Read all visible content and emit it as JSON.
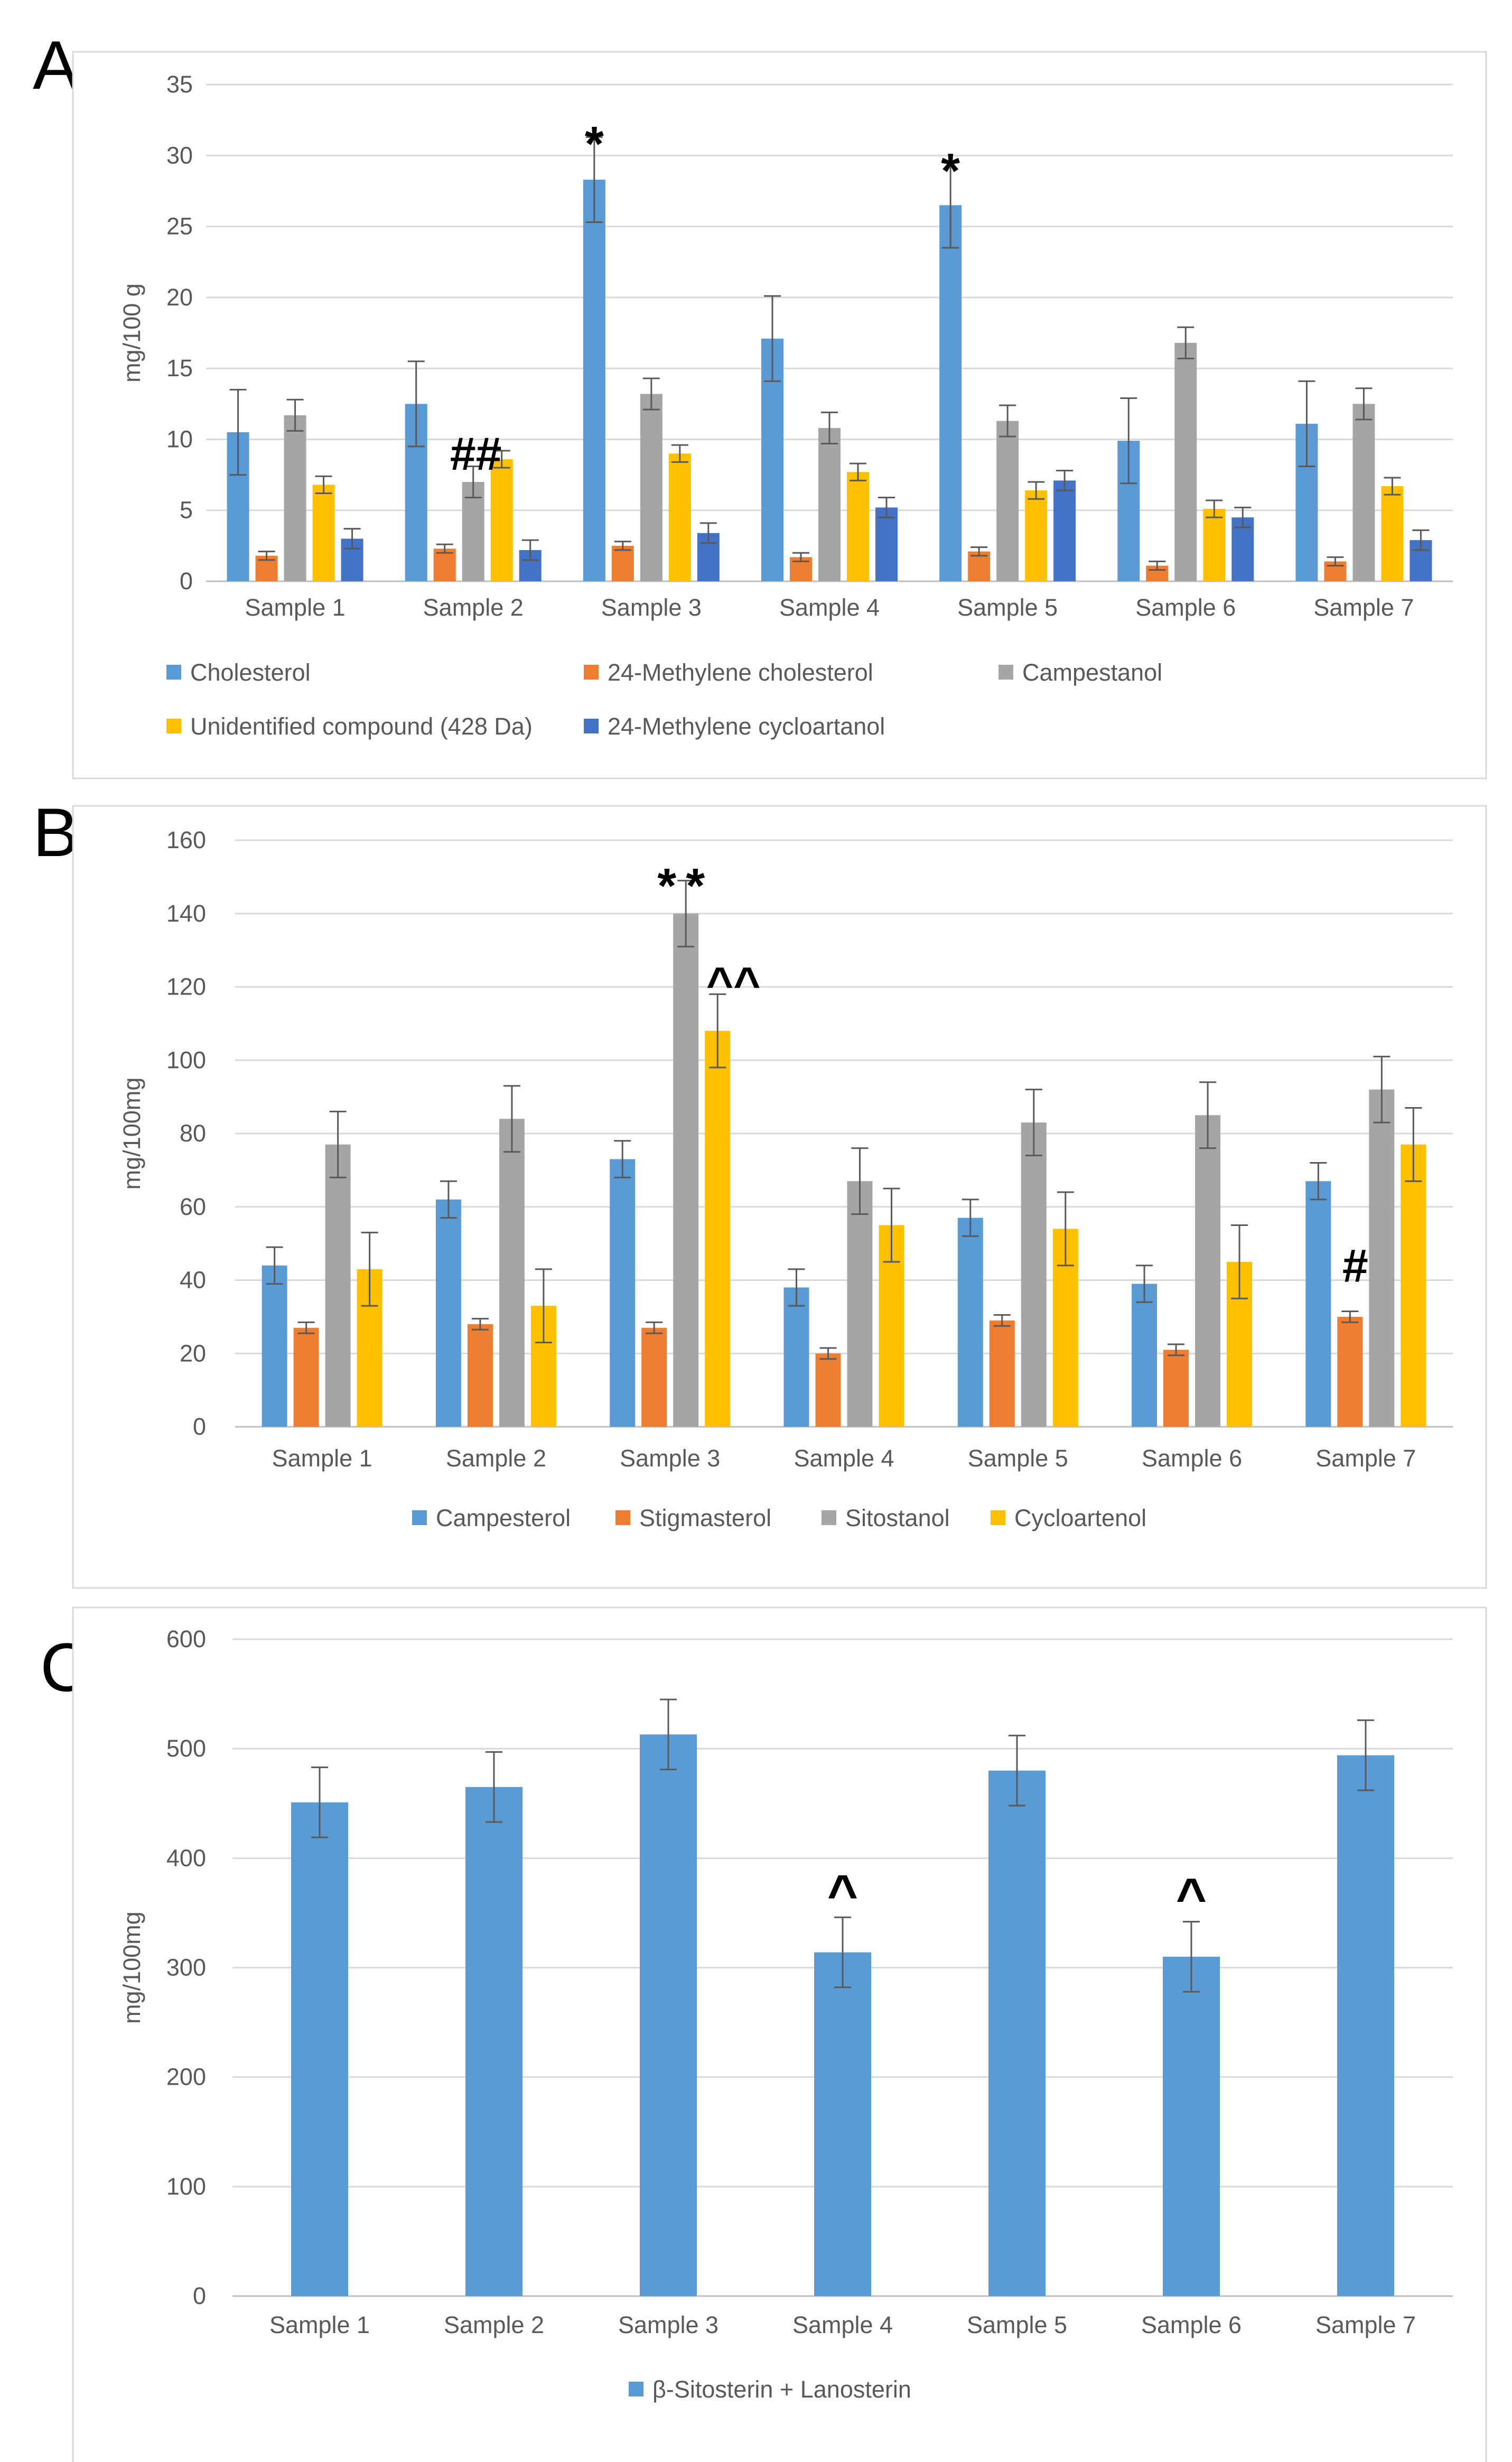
{
  "panels": [
    "A",
    "B",
    "C"
  ],
  "chart_data": [
    {
      "id": "A",
      "type": "bar",
      "title": "",
      "xlabel": "",
      "ylabel": "mg/100 g",
      "ylim": [
        0,
        35
      ],
      "yticks": [
        0,
        5,
        10,
        15,
        20,
        25,
        30,
        35
      ],
      "grid": true,
      "legend_position": "bottom",
      "categories": [
        "Sample 1",
        "Sample 2",
        "Sample 3",
        "Sample 4",
        "Sample 5",
        "Sample 6",
        "Sample 7"
      ],
      "series": [
        {
          "name": "Cholesterol",
          "color": "#5B9BD5",
          "values": [
            10.5,
            12.5,
            28.3,
            17.1,
            26.5,
            9.9,
            11.1
          ],
          "errors": [
            3.0,
            3.0,
            3.0,
            3.0,
            3.0,
            3.0,
            3.0
          ]
        },
        {
          "name": "24-Methylene cholesterol",
          "color": "#ED7D31",
          "values": [
            1.8,
            2.3,
            2.5,
            1.7,
            2.1,
            1.1,
            1.4
          ],
          "errors": [
            0.3,
            0.3,
            0.3,
            0.3,
            0.3,
            0.3,
            0.3
          ]
        },
        {
          "name": "Campestanol",
          "color": "#A5A5A5",
          "values": [
            11.7,
            7.0,
            13.2,
            10.8,
            11.3,
            16.8,
            12.5
          ],
          "errors": [
            1.1,
            1.1,
            1.1,
            1.1,
            1.1,
            1.1,
            1.1
          ]
        },
        {
          "name": "Unidentified compound (428 Da)",
          "color": "#FFC000",
          "values": [
            6.8,
            8.6,
            9.0,
            7.7,
            6.4,
            5.1,
            6.7
          ],
          "errors": [
            0.6,
            0.6,
            0.6,
            0.6,
            0.6,
            0.6,
            0.6
          ]
        },
        {
          "name": "24-Methylene cycloartanol",
          "color": "#4472C4",
          "values": [
            3.0,
            2.2,
            3.4,
            5.2,
            7.1,
            4.5,
            2.9
          ],
          "errors": [
            0.7,
            0.7,
            0.7,
            0.7,
            0.7,
            0.7,
            0.7
          ]
        }
      ],
      "annotations": [
        {
          "text": "*",
          "category": 2,
          "series": 0,
          "y": 31.7
        },
        {
          "text": "##",
          "category": 1,
          "series": 2,
          "y": 9.0
        },
        {
          "text": "*",
          "category": 4,
          "series": 0,
          "y": 29.8
        }
      ]
    },
    {
      "id": "B",
      "type": "bar",
      "title": "",
      "xlabel": "",
      "ylabel": "mg/100mg",
      "ylim": [
        0,
        160
      ],
      "yticks": [
        0,
        20,
        40,
        60,
        80,
        100,
        120,
        140,
        160
      ],
      "grid": true,
      "legend_position": "bottom",
      "categories": [
        "Sample 1",
        "Sample 2",
        "Sample 3",
        "Sample 4",
        "Sample 5",
        "Sample 6",
        "Sample 7"
      ],
      "series": [
        {
          "name": "Campesterol",
          "color": "#5B9BD5",
          "values": [
            44,
            62,
            73,
            38,
            57,
            39,
            67
          ],
          "errors": [
            5,
            5,
            5,
            5,
            5,
            5,
            5
          ]
        },
        {
          "name": "Stigmasterol",
          "color": "#ED7D31",
          "values": [
            27,
            28,
            27,
            20,
            29,
            21,
            30
          ],
          "errors": [
            1.5,
            1.5,
            1.5,
            1.5,
            1.5,
            1.5,
            1.5
          ]
        },
        {
          "name": "Sitostanol",
          "color": "#A5A5A5",
          "values": [
            77,
            84,
            140,
            67,
            83,
            85,
            92
          ],
          "errors": [
            9,
            9,
            9,
            9,
            9,
            9,
            9
          ]
        },
        {
          "name": "Cycloartenol",
          "color": "#FFC000",
          "values": [
            43,
            33,
            108,
            55,
            54,
            45,
            77
          ],
          "errors": [
            10,
            10,
            10,
            10,
            10,
            10,
            10
          ]
        }
      ],
      "annotations": [
        {
          "text": "**",
          "category": 2,
          "series": 2,
          "y": 151
        },
        {
          "text": "^^",
          "category": 2,
          "series": 3,
          "y": 121
        },
        {
          "text": "#",
          "category": 6,
          "series": 1,
          "y": 44
        }
      ]
    },
    {
      "id": "C",
      "type": "bar",
      "title": "",
      "xlabel": "",
      "ylabel": "mg/100mg",
      "ylim": [
        0,
        600
      ],
      "yticks": [
        0,
        100,
        200,
        300,
        400,
        500,
        600
      ],
      "grid": true,
      "legend_position": "bottom",
      "categories": [
        "Sample 1",
        "Sample 2",
        "Sample 3",
        "Sample 4",
        "Sample 5",
        "Sample 6",
        "Sample 7"
      ],
      "series": [
        {
          "name": "β-Sitosterin + Lanosterin",
          "color": "#5B9BD5",
          "values": [
            451,
            465,
            513,
            314,
            480,
            310,
            494
          ],
          "errors": [
            32,
            32,
            32,
            32,
            32,
            32,
            32
          ]
        }
      ],
      "annotations": [
        {
          "text": "^",
          "category": 3,
          "series": 0,
          "y": 368
        },
        {
          "text": "^",
          "category": 5,
          "series": 0,
          "y": 365
        }
      ]
    }
  ]
}
